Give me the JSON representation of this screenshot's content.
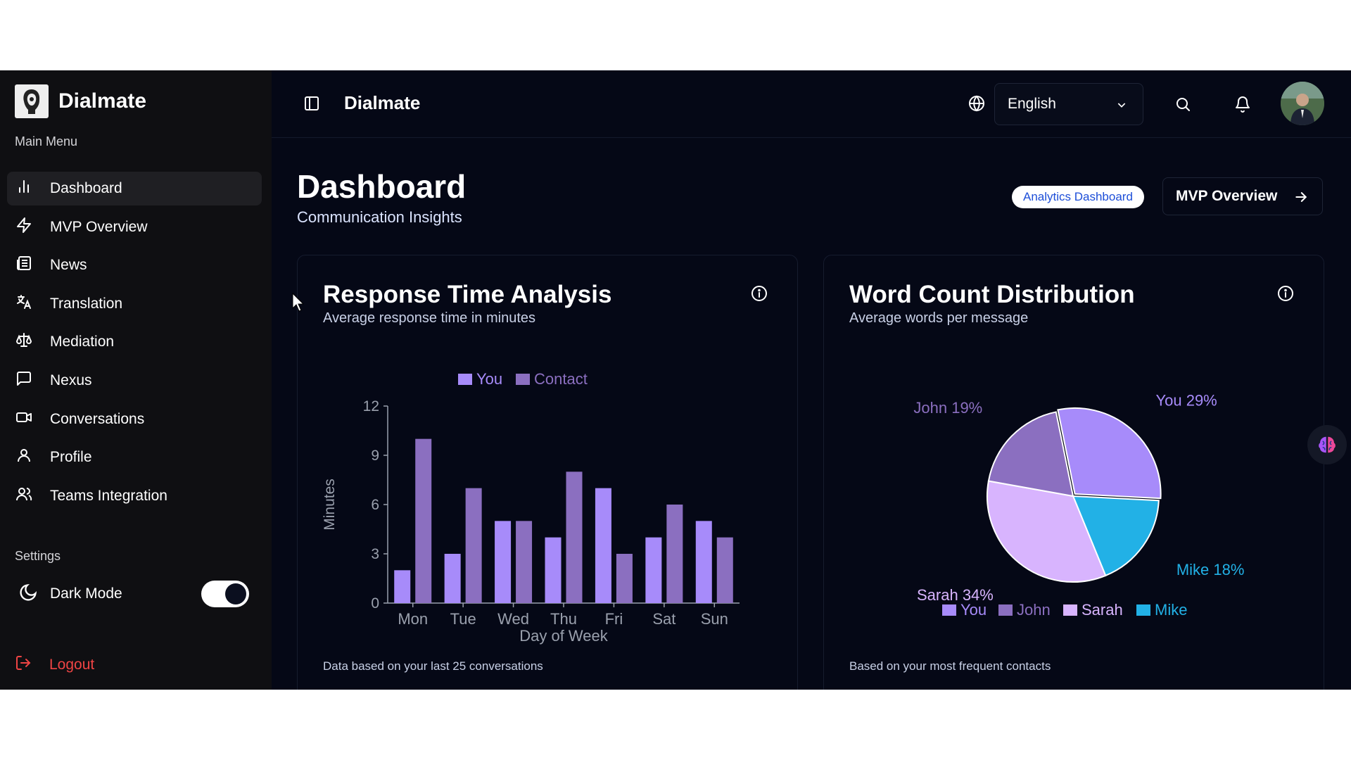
{
  "brand": {
    "name": "Dialmate"
  },
  "sidebar": {
    "main_menu_label": "Main Menu",
    "items": [
      {
        "label": "Dashboard",
        "icon": "bar-chart-icon",
        "active": true
      },
      {
        "label": "MVP Overview",
        "icon": "bolt-icon"
      },
      {
        "label": "News",
        "icon": "newspaper-icon"
      },
      {
        "label": "Translation",
        "icon": "translate-icon"
      },
      {
        "label": "Mediation",
        "icon": "scale-icon"
      },
      {
        "label": "Nexus",
        "icon": "message-square-icon"
      },
      {
        "label": "Conversations",
        "icon": "video-icon"
      },
      {
        "label": "Profile",
        "icon": "user-icon"
      },
      {
        "label": "Teams Integration",
        "icon": "users-icon"
      }
    ],
    "settings_label": "Settings",
    "dark_mode_label": "Dark Mode",
    "dark_mode_on": true,
    "logout_label": "Logout"
  },
  "header": {
    "title": "Dialmate",
    "language": "English"
  },
  "main": {
    "title": "Dashboard",
    "subtitle": "Communication Insights",
    "pill_label": "Analytics Dashboard",
    "mvp_button_label": "MVP Overview"
  },
  "cards": [
    {
      "title": "Response Time Analysis",
      "subtitle": "Average response time in minutes",
      "footer": "Data based on your last 25 conversations"
    },
    {
      "title": "Word Count Distribution",
      "subtitle": "Average words per message",
      "footer": "Based on your most frequent contacts"
    }
  ],
  "colors": {
    "you": "#a78bfa",
    "contact": "#8b6fc0",
    "john": "#8b6fc0",
    "sarah": "#d8b4fe",
    "mike": "#22b1e6"
  },
  "chart_data": [
    {
      "type": "bar",
      "categories": [
        "Mon",
        "Tue",
        "Wed",
        "Thu",
        "Fri",
        "Sat",
        "Sun"
      ],
      "series": [
        {
          "name": "You",
          "values": [
            2,
            3,
            5,
            4,
            7,
            4,
            5
          ]
        },
        {
          "name": "Contact",
          "values": [
            10,
            7,
            5,
            8,
            3,
            6,
            4
          ]
        }
      ],
      "xlabel": "Day of Week",
      "ylabel": "Minutes",
      "yticks": [
        0,
        3,
        6,
        9,
        12
      ],
      "ylim": [
        0,
        12
      ],
      "legend": "top"
    },
    {
      "type": "pie",
      "slices": [
        {
          "name": "You",
          "value": 29,
          "label": "You 29%"
        },
        {
          "name": "Mike",
          "value": 18,
          "label": "Mike 18%"
        },
        {
          "name": "Sarah",
          "value": 34,
          "label": "Sarah 34%"
        },
        {
          "name": "John",
          "value": 19,
          "label": "John 19%"
        }
      ],
      "legend": [
        "You",
        "John",
        "Sarah",
        "Mike"
      ],
      "legend_position": "bottom"
    }
  ]
}
